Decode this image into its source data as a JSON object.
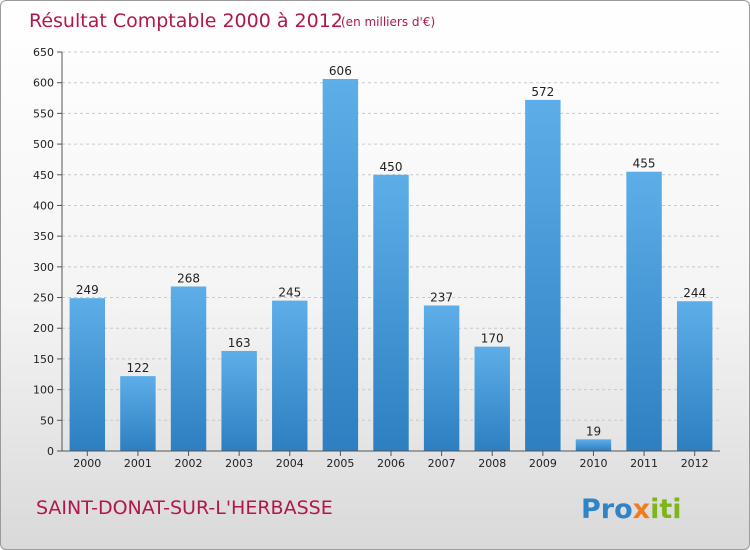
{
  "chart_data": {
    "type": "bar",
    "title": "Résultat Comptable 2000 à 2012",
    "subtitle": "(en milliers d'€)",
    "categories": [
      "2000",
      "2001",
      "2002",
      "2003",
      "2004",
      "2005",
      "2006",
      "2007",
      "2008",
      "2009",
      "2010",
      "2011",
      "2012"
    ],
    "values": [
      249,
      122,
      268,
      163,
      245,
      606,
      450,
      237,
      170,
      572,
      19,
      455,
      244
    ],
    "ylim": [
      0,
      650
    ],
    "yticks": [
      0,
      50,
      100,
      150,
      200,
      250,
      300,
      350,
      400,
      450,
      500,
      550,
      600,
      650
    ],
    "grid": true,
    "xlabel": "",
    "ylabel": "",
    "colors": {
      "bar_top": "#5daee8",
      "bar_bottom": "#2d7fc1",
      "title": "#b0174e"
    }
  },
  "footer": {
    "town": "SAINT-DONAT-SUR-L'HERBASSE",
    "logo": "Proxiti"
  }
}
